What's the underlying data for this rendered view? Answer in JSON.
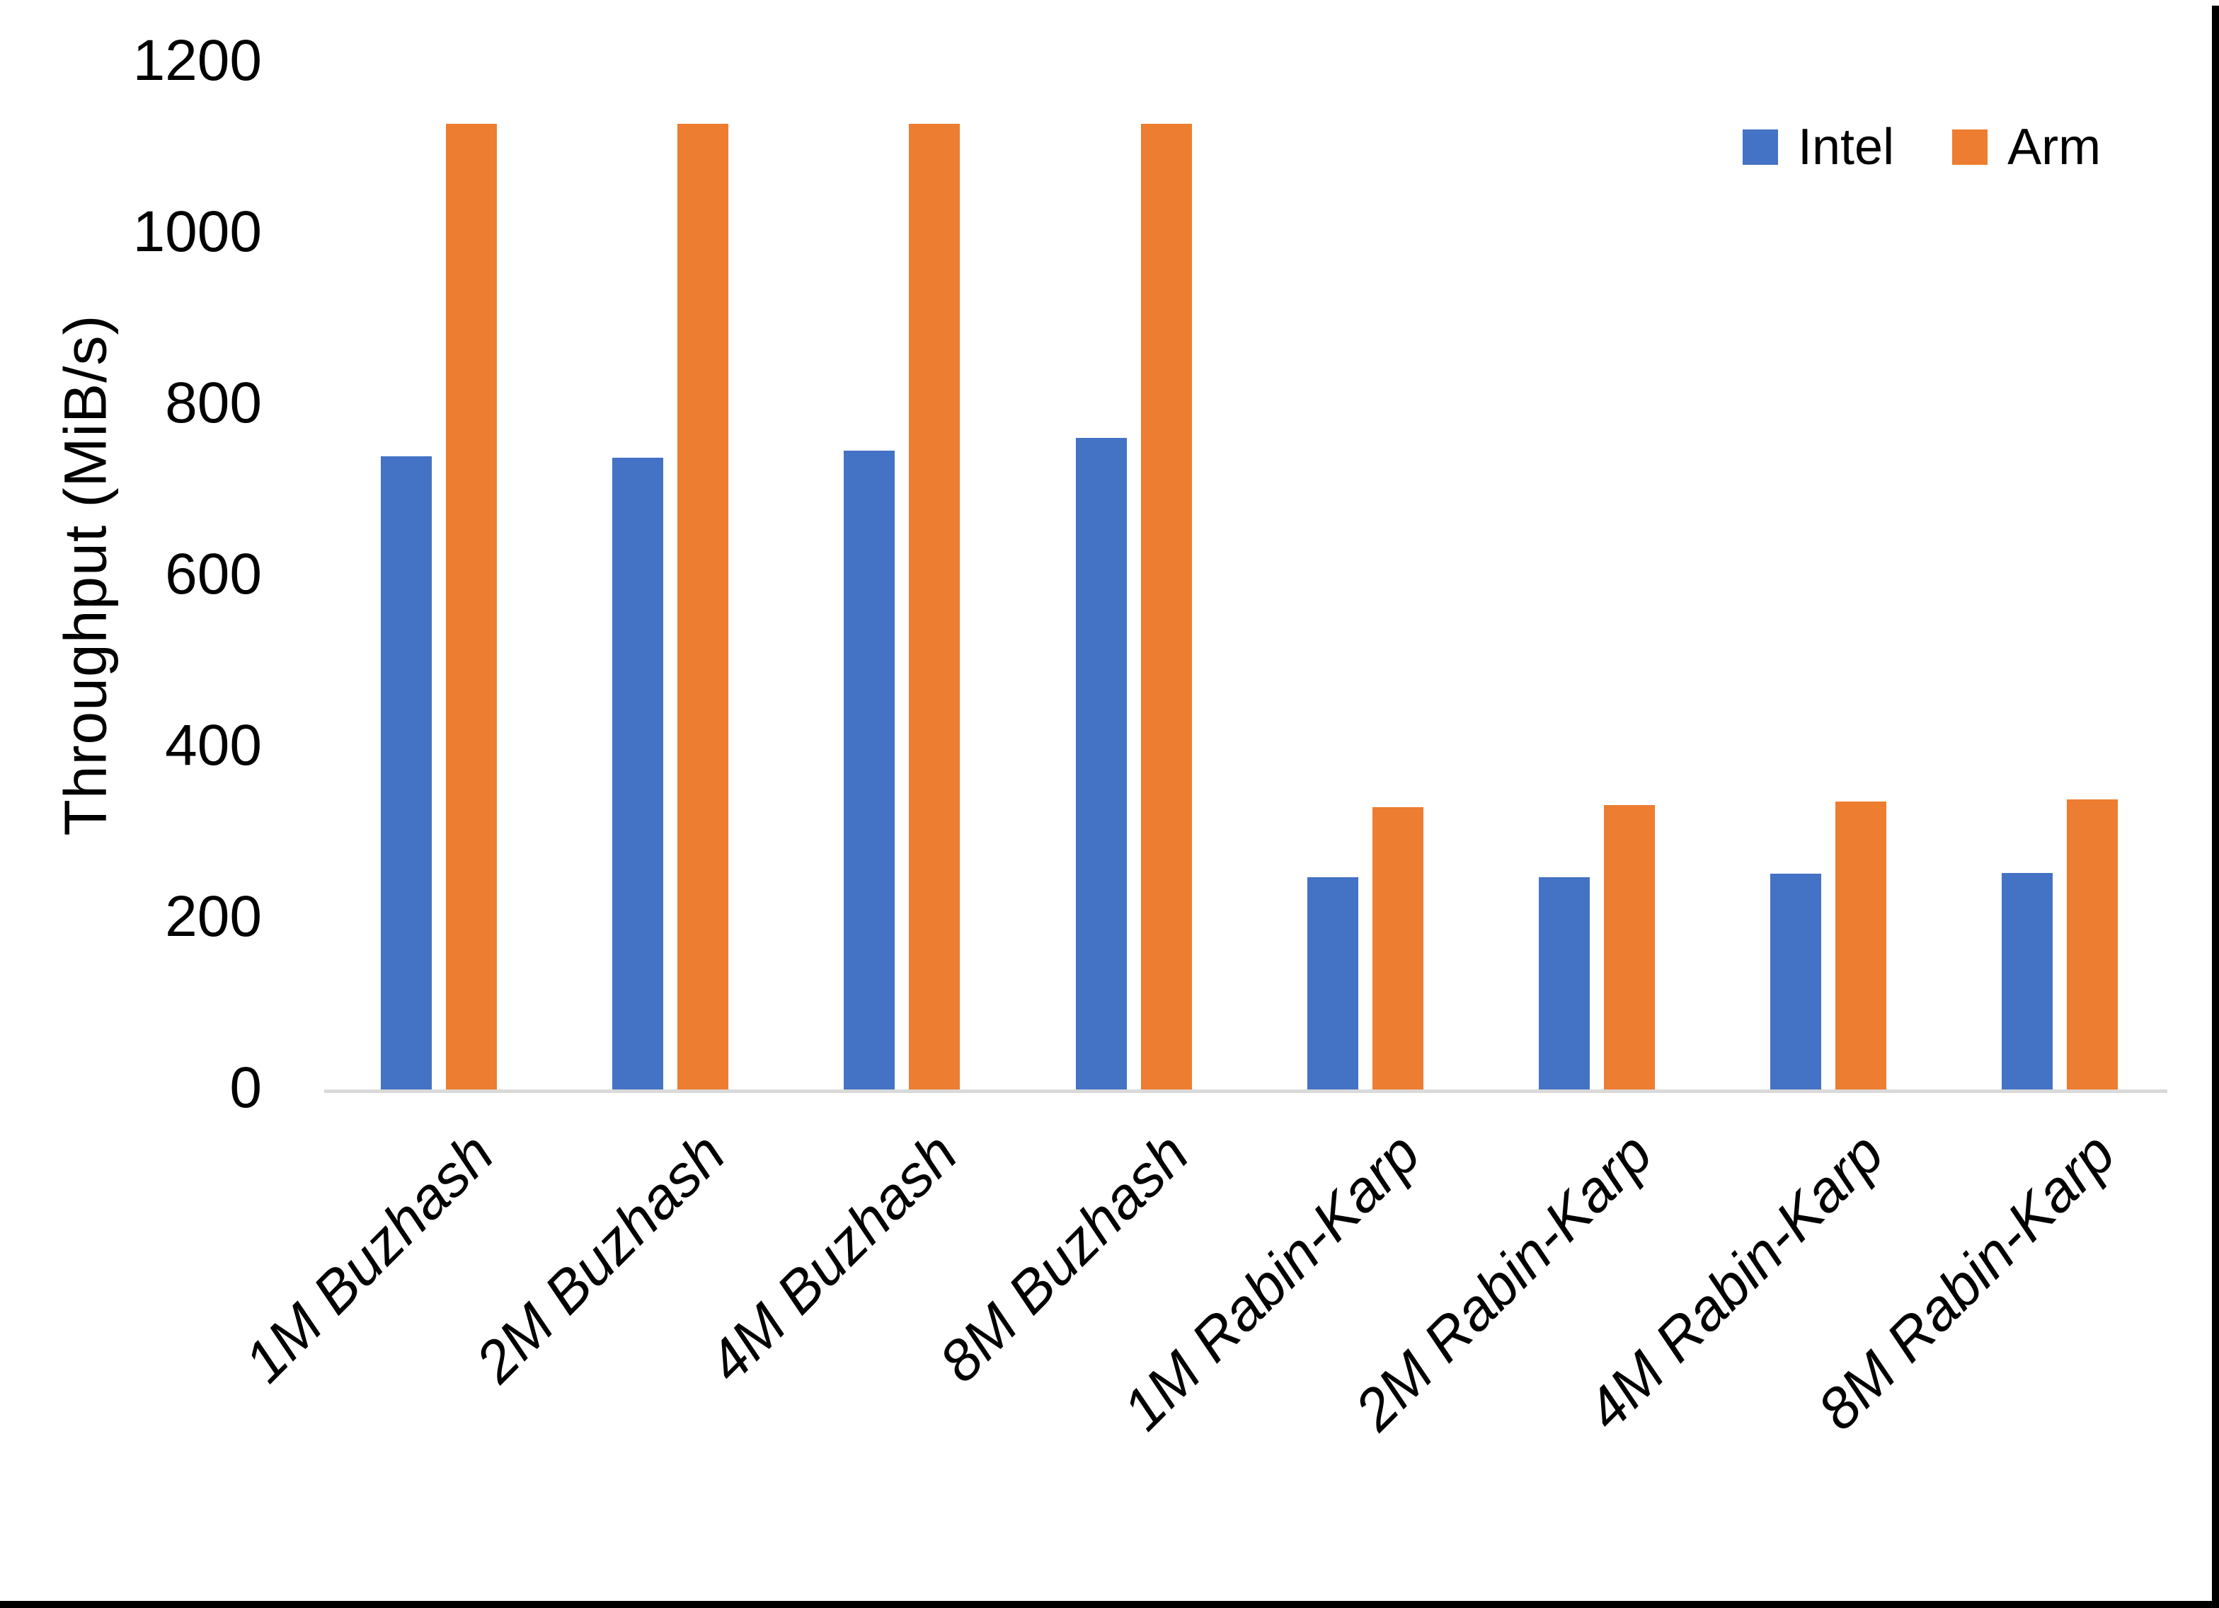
{
  "chart_data": {
    "type": "bar",
    "title": "",
    "ylabel": "Throughput (MiB/s)",
    "xlabel": "",
    "ylim": [
      0,
      1200
    ],
    "yticks": [
      1200,
      1000,
      800,
      600,
      400,
      200,
      0
    ],
    "grid": false,
    "legend_position": "top-right",
    "categories": [
      "1M Buzhash",
      "2M Buzhash",
      "4M Buzhash",
      "8M Buzhash",
      "1M Rabin-Karp",
      "2M Rabin-Karp",
      "4M Rabin-Karp",
      "8M Rabin-Karp"
    ],
    "series": [
      {
        "name": "Intel",
        "color": "#4472C4",
        "values": [
          740,
          738,
          746,
          761,
          248,
          248,
          252,
          253
        ]
      },
      {
        "name": "Arm",
        "color": "#ED7D31",
        "values": [
          1128,
          1128,
          1128,
          1128,
          330,
          332,
          336,
          339
        ]
      }
    ],
    "units": "MiB/s"
  },
  "colors": {
    "intel": "#4472C4",
    "arm": "#ED7D31",
    "axis_line": "#D9D9D9",
    "text": "#000000",
    "edge_border": "#000000",
    "background": "#FFFFFF"
  }
}
